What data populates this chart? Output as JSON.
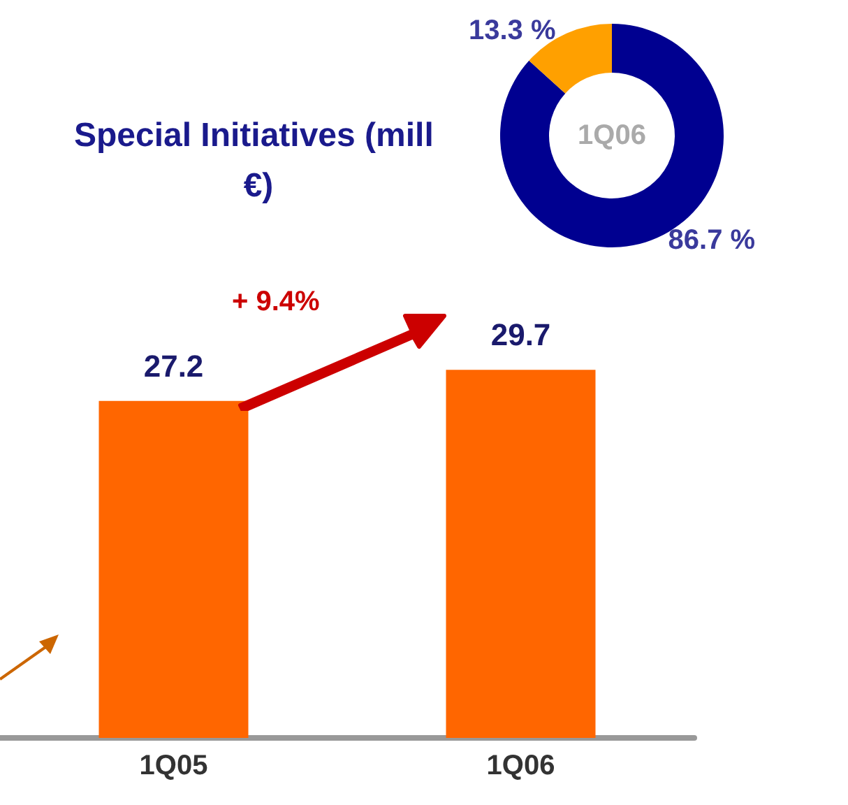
{
  "chart_data": [
    {
      "type": "bar",
      "title": "Special Initiatives (mill €)",
      "categories": [
        "1Q05",
        "1Q06"
      ],
      "values": [
        27.2,
        29.7
      ],
      "color": "#ff6600",
      "tick_labels": "x",
      "data_labels": true,
      "annotations": [
        "+ 9.4%"
      ]
    },
    {
      "type": "donut",
      "title": "1Q06",
      "categories": [
        null,
        null
      ],
      "values": [
        86.7,
        13.3
      ],
      "colors": [
        "#000090",
        "#ffa000"
      ],
      "value_labels": [
        "86.7 %",
        "13.3 %"
      ]
    }
  ]
}
